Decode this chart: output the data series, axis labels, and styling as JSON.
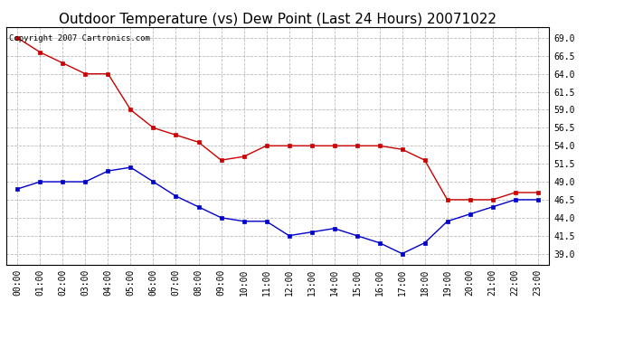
{
  "title": "Outdoor Temperature (vs) Dew Point (Last 24 Hours) 20071022",
  "copyright_text": "Copyright 2007 Cartronics.com",
  "x_labels": [
    "00:00",
    "01:00",
    "02:00",
    "03:00",
    "04:00",
    "05:00",
    "06:00",
    "07:00",
    "08:00",
    "09:00",
    "10:00",
    "11:00",
    "12:00",
    "13:00",
    "14:00",
    "15:00",
    "16:00",
    "17:00",
    "18:00",
    "19:00",
    "20:00",
    "21:00",
    "22:00",
    "23:00"
  ],
  "temp_data": [
    69.0,
    67.0,
    65.5,
    64.0,
    64.0,
    59.0,
    56.5,
    55.5,
    54.5,
    52.0,
    52.5,
    54.0,
    54.0,
    54.0,
    54.0,
    54.0,
    54.0,
    53.5,
    52.0,
    46.5,
    46.5,
    46.5,
    47.5,
    47.5
  ],
  "dew_data": [
    48.0,
    49.0,
    49.0,
    49.0,
    50.5,
    51.0,
    49.0,
    47.0,
    45.5,
    44.0,
    43.5,
    43.5,
    41.5,
    42.0,
    42.5,
    41.5,
    40.5,
    39.0,
    40.5,
    43.5,
    44.5,
    45.5,
    46.5,
    46.5
  ],
  "temp_color": "#cc0000",
  "dew_color": "#0000cc",
  "ylim_min": 37.5,
  "ylim_max": 70.5,
  "yticks": [
    39.0,
    41.5,
    44.0,
    46.5,
    49.0,
    51.5,
    54.0,
    56.5,
    59.0,
    61.5,
    64.0,
    66.5,
    69.0
  ],
  "bg_color": "#ffffff",
  "grid_color": "#aaaaaa",
  "title_fontsize": 11,
  "copyright_fontsize": 6.5,
  "tick_fontsize": 7,
  "ytick_fontsize": 7
}
